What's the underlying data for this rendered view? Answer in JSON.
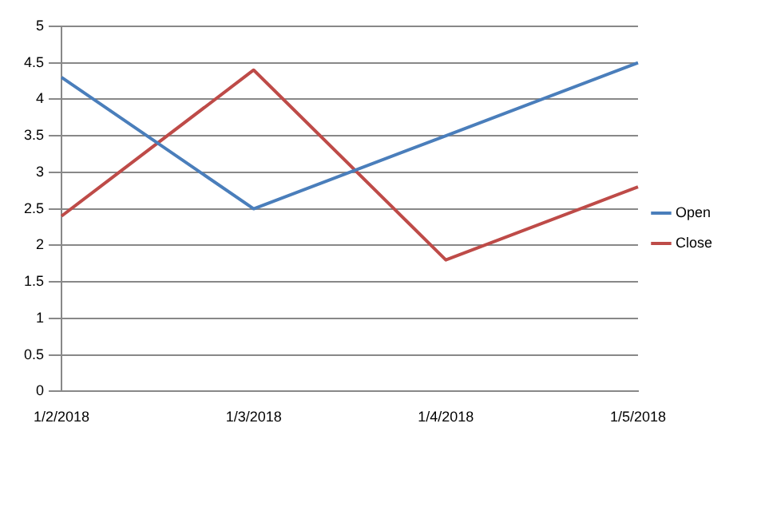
{
  "chart_data": {
    "type": "line",
    "categories": [
      "1/2/2018",
      "1/3/2018",
      "1/4/2018",
      "1/5/2018"
    ],
    "series": [
      {
        "name": "Open",
        "color": "#4a7ebb",
        "values": [
          4.3,
          2.5,
          3.5,
          4.5
        ]
      },
      {
        "name": "Close",
        "color": "#be4b48",
        "values": [
          2.4,
          4.4,
          1.8,
          2.8
        ]
      }
    ],
    "ylim": [
      0,
      5
    ],
    "yticks": [
      0,
      0.5,
      1,
      1.5,
      2,
      2.5,
      3,
      3.5,
      4,
      4.5,
      5
    ],
    "grid": "y",
    "legend": "right",
    "marker": "none",
    "line_style": "solid"
  }
}
